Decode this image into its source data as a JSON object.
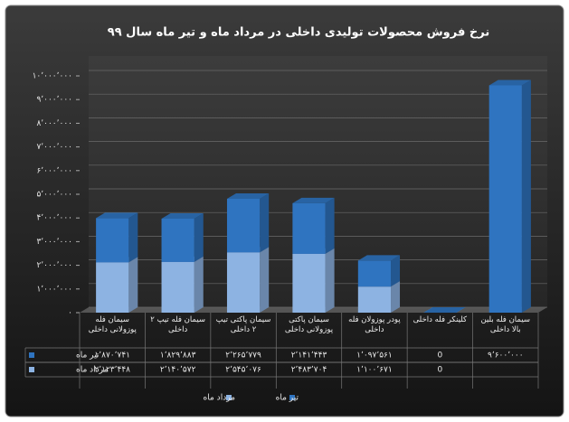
{
  "chart_data": {
    "type": "bar",
    "stacked": true,
    "title": "نرخ فروش محصولات تولیدی داخلی در مرداد ماه و تیر ماه سال ۹۹",
    "categories": [
      "سیمان فله پوزولانی داخلی",
      "سیمان فله تیپ ۲ داخلی",
      "سیمان پاکتی تیپ ۲ داخلی",
      "سیمان پاکتی پوزولانی داخلی",
      "پودر پوزولان فله داخلی",
      "کلینکر فله داخلی",
      "سیمان فله بلین بالا داخلی"
    ],
    "series": [
      {
        "name": "مرداد ماه",
        "color": "#8db3e2",
        "values": [
          2123448,
          2140572,
          2545076,
          2483704,
          1100671,
          0,
          null
        ],
        "value_labels": [
          "۲٬۱۲۳٬۴۴۸",
          "۲٬۱۴۰٬۵۷۲",
          "۲٬۵۴۵٬۰۷۶",
          "۲٬۴۸۳٬۷۰۴",
          "۱٬۱۰۰٬۶۷۱",
          "0",
          null
        ]
      },
      {
        "name": "تیر ماه",
        "color": "#2f74c0",
        "values": [
          1870741,
          1829883,
          2265779,
          2141443,
          1097561,
          0,
          9600000
        ],
        "value_labels": [
          "۱٬۸۷۰٬۷۴۱",
          "۱٬۸۲۹٬۸۸۳",
          "۲٬۲۶۵٬۷۷۹",
          "۲٬۱۴۱٬۴۴۳",
          "۱٬۰۹۷٬۵۶۱",
          "0",
          "۹٬۶۰۰٬۰۰۰"
        ]
      }
    ],
    "ylim": [
      0,
      10000000
    ],
    "yticks": [
      {
        "value": 0,
        "label": "۰"
      },
      {
        "value": 1000000,
        "label": "۱٬۰۰۰٬۰۰۰"
      },
      {
        "value": 2000000,
        "label": "۲٬۰۰۰٬۰۰۰"
      },
      {
        "value": 3000000,
        "label": "۳٬۰۰۰٬۰۰۰"
      },
      {
        "value": 4000000,
        "label": "۴٬۰۰۰٬۰۰۰"
      },
      {
        "value": 5000000,
        "label": "۵٬۰۰۰٬۰۰۰"
      },
      {
        "value": 6000000,
        "label": "۶٬۰۰۰٬۰۰۰"
      },
      {
        "value": 7000000,
        "label": "۷٬۰۰۰٬۰۰۰"
      },
      {
        "value": 8000000,
        "label": "۸٬۰۰۰٬۰۰۰"
      },
      {
        "value": 9000000,
        "label": "۹٬۰۰۰٬۰۰۰"
      },
      {
        "value": 10000000,
        "label": "۱۰٬۰۰۰٬۰۰۰"
      }
    ],
    "grid": true,
    "legend": "bottom"
  }
}
